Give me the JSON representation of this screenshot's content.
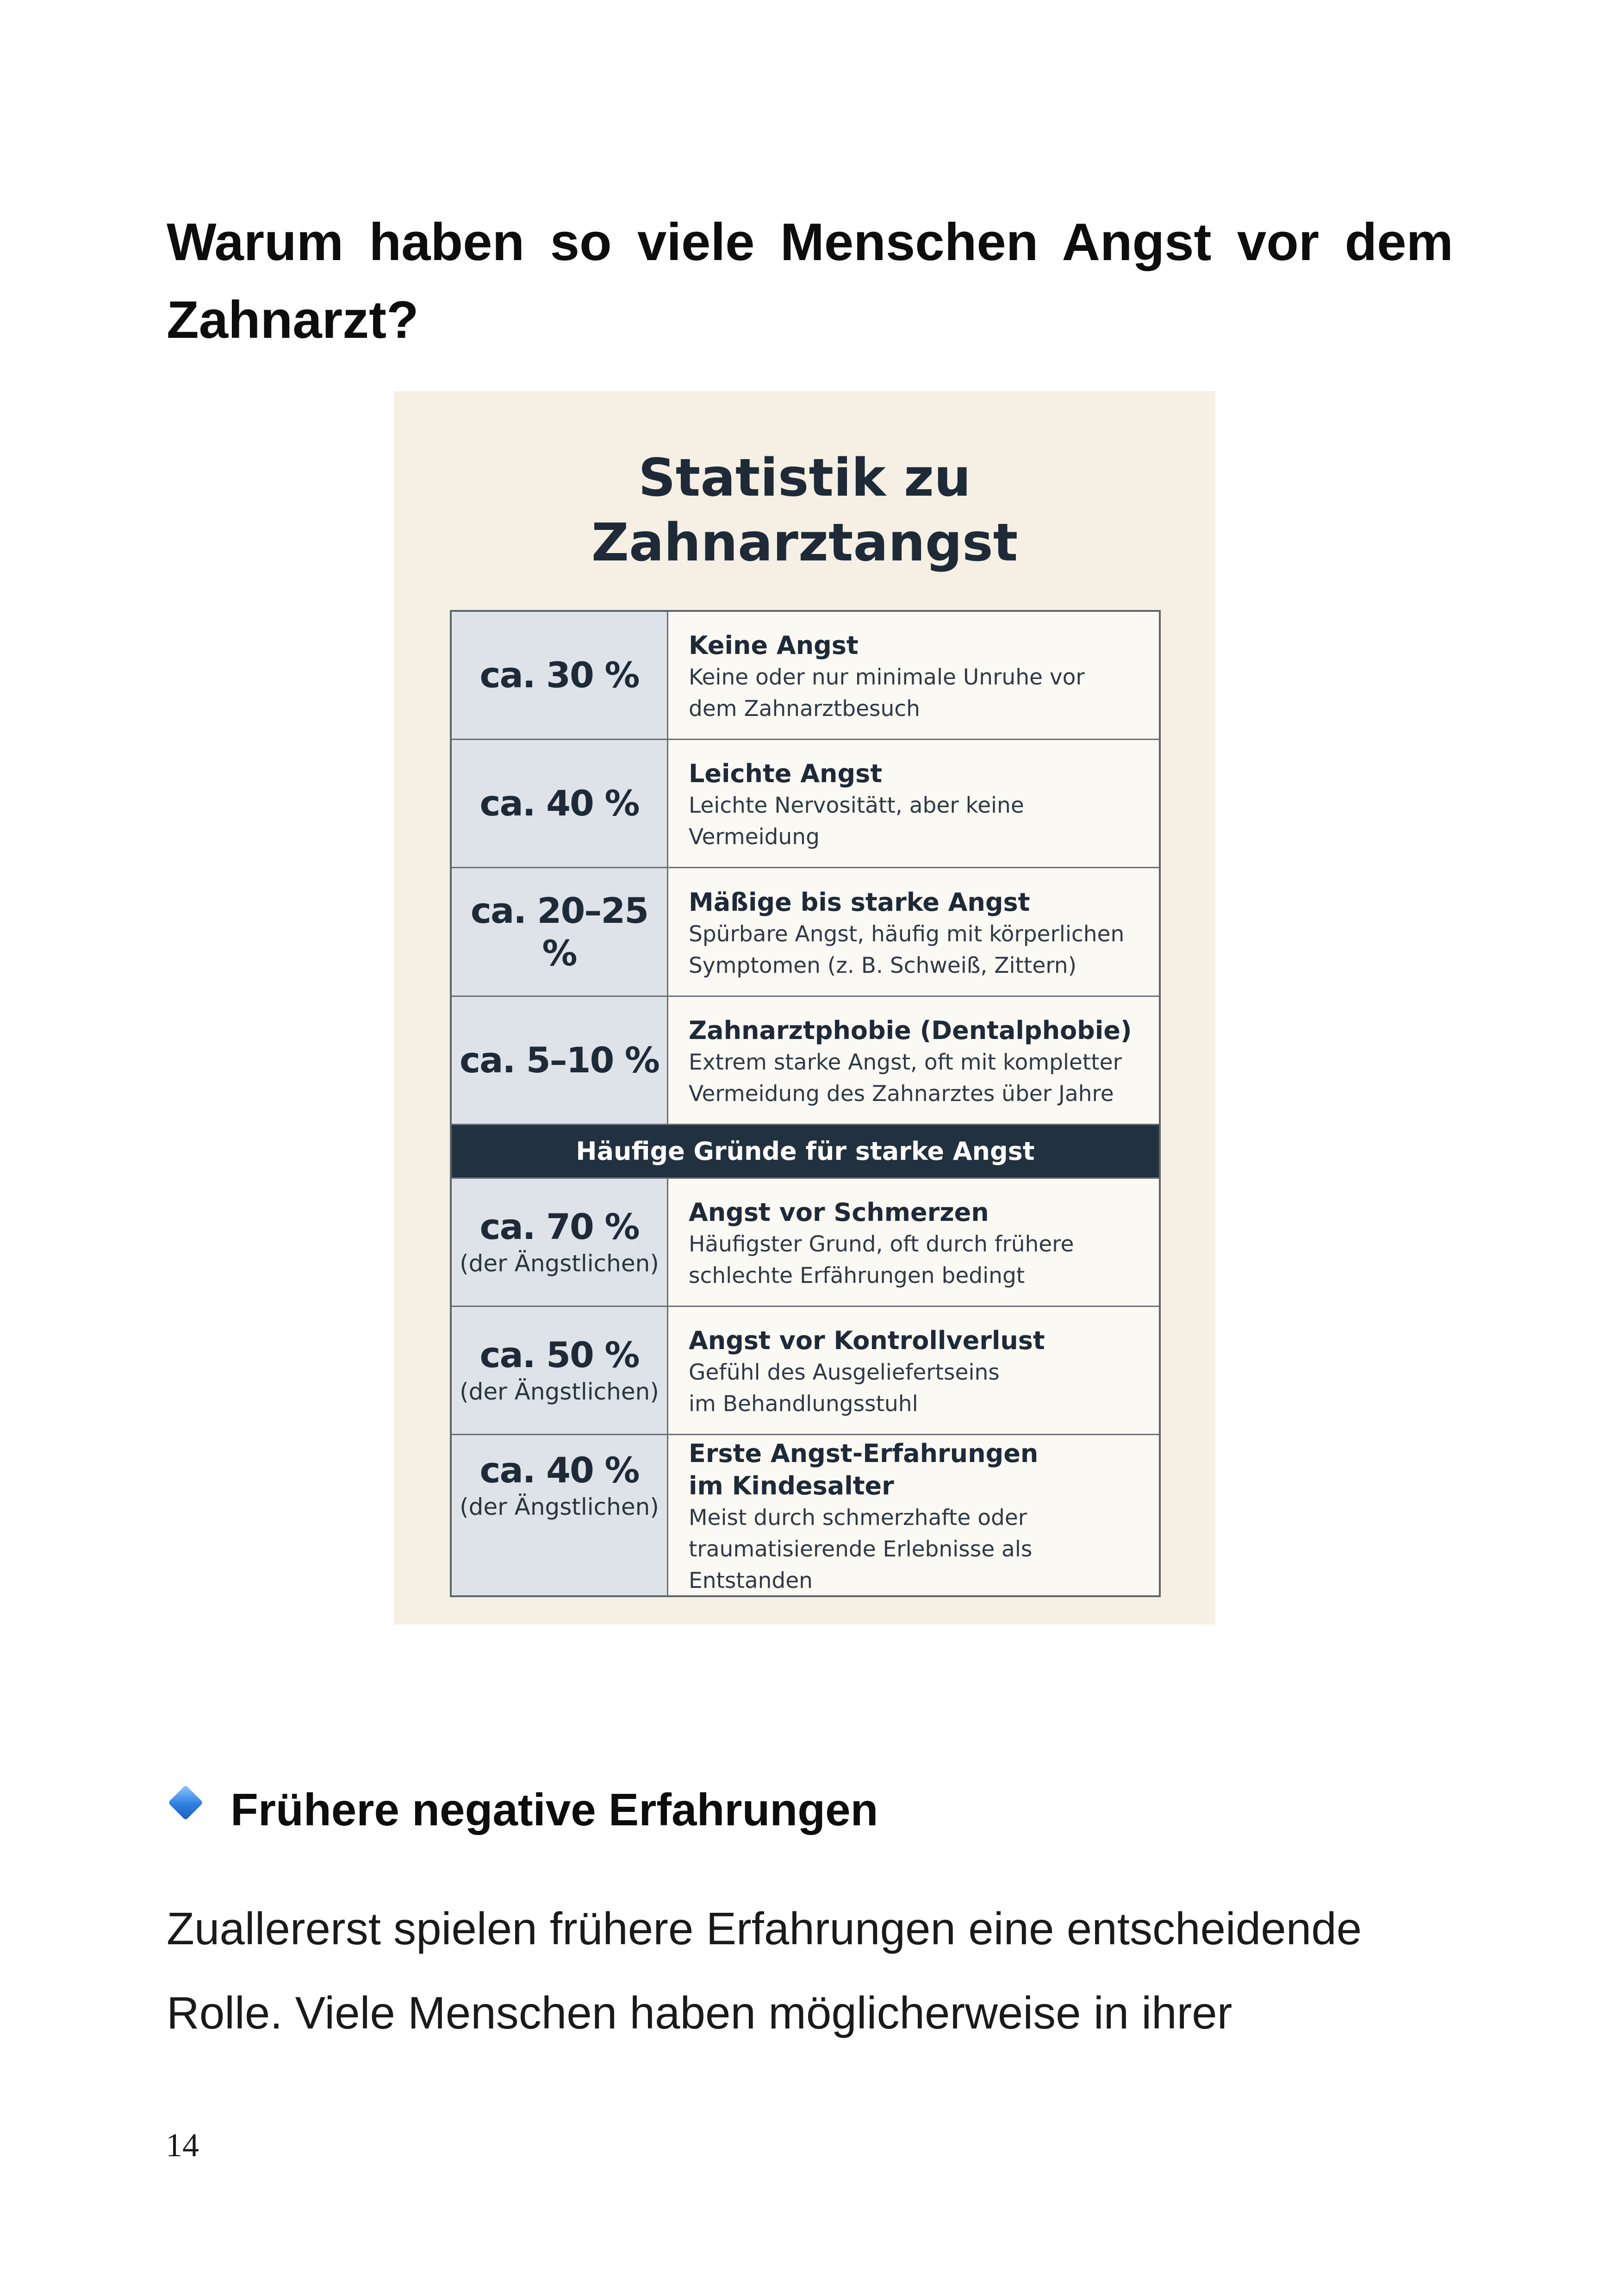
{
  "page": {
    "title": "Warum haben so viele Menschen Angst vor dem Zahnarzt?",
    "page_number": "14"
  },
  "infographic": {
    "title_line1": "Statistik zu",
    "title_line2": "Zahnarztangst",
    "rows": [
      {
        "percent": "ca. 30 %",
        "head": "Keine Angst",
        "body_line1": "Keine oder nur minimale Unruhe vor",
        "body_line2": "dem Zahnarztbesuch"
      },
      {
        "percent": "ca. 40 %",
        "head": "Leichte Angst",
        "body_line1": "Leichte Nervositätt, aber keine",
        "body_line2": "Vermeidung"
      },
      {
        "percent": "ca. 20–25 %",
        "head": "Mäßige bis starke Angst",
        "body_line1": "Spürbare Angst, häufig mit körperlichen",
        "body_line2": "Symptomen (z. B. Schweiß, Zittern)"
      },
      {
        "percent": "ca. 5–10 %",
        "head": "Zahnarztphobie (Dentalphobie)",
        "body_line1": "Extrem starke Angst, oft mit kompletter",
        "body_line2": "Vermeidung des Zahnarztes über Jahre"
      }
    ],
    "section_band": "Häufige Gründe für starke Angst",
    "reasons": [
      {
        "percent": "ca. 70 %",
        "note": "(der Ängstlichen)",
        "head": "Angst vor Schmerzen",
        "body_line1": "Häufigster Grund, oft durch frühere",
        "body_line2": "schlechte Erfährungen bedingt"
      },
      {
        "percent": "ca. 50 %",
        "note": "(der Ängstlichen)",
        "head": "Angst vor Kontrollverlust",
        "body_line1": "Gefühl des Ausgeliefertseins",
        "body_line2": "im Behandlungsstuhl"
      },
      {
        "percent": "ca. 40 %",
        "note": "(der Ängstlichen)",
        "head_line1": "Erste Angst-Erfahrungen",
        "head_line2": "im Kindesalter",
        "body_line1": "Meist durch schmerzhafte oder",
        "body_line2": "traumatisierende Erlebnisse als Entstanden"
      }
    ]
  },
  "section": {
    "icon": "blue-diamond-icon",
    "heading": "Frühere negative Erfahrungen",
    "body_line1": "Zuallererst spielen frühere Erfahrungen eine entscheidende",
    "body_line2": "Rolle. Viele Menschen haben möglicherweise in ihrer"
  }
}
